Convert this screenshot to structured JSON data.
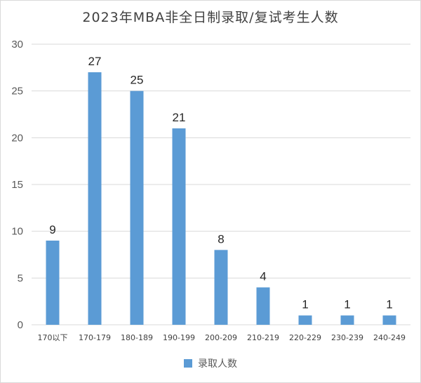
{
  "chart_data": {
    "type": "bar",
    "title": "2023年MBA非全日制录取/复试考生人数",
    "categories": [
      "170以下",
      "170-179",
      "180-189",
      "190-199",
      "200-209",
      "210-219",
      "220-229",
      "230-239",
      "240-249"
    ],
    "series": [
      {
        "name": "录取人数",
        "values": [
          9,
          27,
          25,
          21,
          8,
          4,
          1,
          1,
          1
        ]
      }
    ],
    "ylim": [
      0,
      30
    ],
    "yticks": [
      0,
      5,
      10,
      15,
      20,
      25,
      30
    ],
    "grid": true,
    "legend": "bottom",
    "data_labels": true,
    "colors": {
      "bar": "#5b9bd5",
      "grid": "#d9d9d9"
    }
  }
}
